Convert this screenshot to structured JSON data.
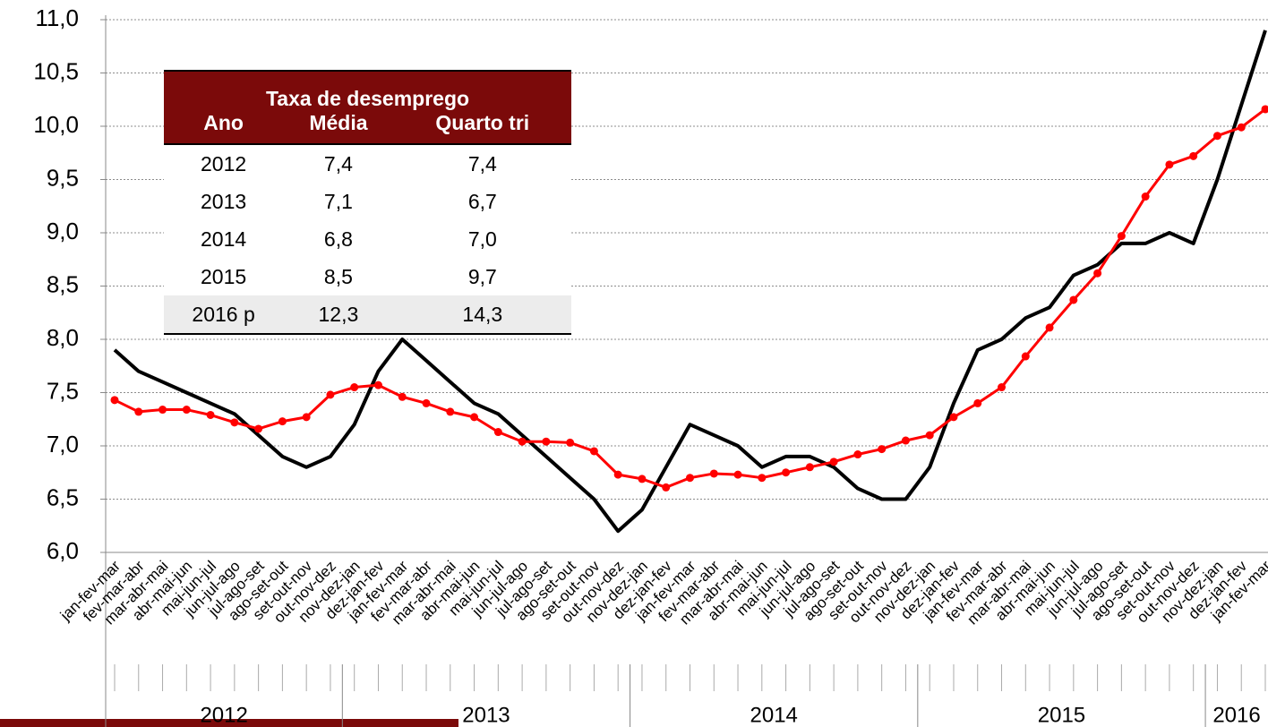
{
  "chart_data": {
    "type": "line",
    "categories": [
      "jan-fev-mar",
      "fev-mar-abr",
      "mar-abr-mai",
      "abr-mai-jun",
      "mai-jun-jul",
      "jun-jul-ago",
      "jul-ago-set",
      "ago-set-out",
      "set-out-nov",
      "out-nov-dez",
      "nov-dez-jan",
      "dez-jan-fev",
      "jan-fev-mar",
      "fev-mar-abr",
      "mar-abr-mai",
      "abr-mai-jun",
      "mai-jun-jul",
      "jun-jul-ago",
      "jul-ago-set",
      "ago-set-out",
      "set-out-nov",
      "out-nov-dez",
      "nov-dez-jan",
      "dez-jan-fev",
      "jan-fev-mar",
      "fev-mar-abr",
      "mar-abr-mai",
      "abr-mai-jun",
      "mai-jun-jul",
      "jun-jul-ago",
      "jul-ago-set",
      "ago-set-out",
      "set-out-nov",
      "out-nov-dez",
      "nov-dez-jan",
      "dez-jan-fev",
      "jan-fev-mar",
      "fev-mar-abr",
      "mar-abr-mai",
      "abr-mai-jun",
      "mai-jun-jul",
      "jun-jul-ago",
      "jul-ago-set",
      "ago-set-out",
      "set-out-nov",
      "out-nov-dez",
      "nov-dez-jan",
      "dez-jan-fev",
      "jan-fev-mar"
    ],
    "category_years": [
      "2012",
      "2012",
      "2012",
      "2012",
      "2012",
      "2012",
      "2012",
      "2012",
      "2012",
      "2012",
      "2013",
      "2013",
      "2013",
      "2013",
      "2013",
      "2013",
      "2013",
      "2013",
      "2013",
      "2013",
      "2013",
      "2013",
      "2014",
      "2014",
      "2014",
      "2014",
      "2014",
      "2014",
      "2014",
      "2014",
      "2014",
      "2014",
      "2014",
      "2014",
      "2015",
      "2015",
      "2015",
      "2015",
      "2015",
      "2015",
      "2015",
      "2015",
      "2015",
      "2015",
      "2015",
      "2015",
      "2016",
      "2016",
      "2016"
    ],
    "series": [
      {
        "color": "#000000",
        "values": [
          7.9,
          7.7,
          7.6,
          7.5,
          7.4,
          7.3,
          7.1,
          6.9,
          6.8,
          6.9,
          7.2,
          7.7,
          8.0,
          7.8,
          7.6,
          7.4,
          7.3,
          7.1,
          6.9,
          6.7,
          6.5,
          6.2,
          6.4,
          6.8,
          7.2,
          7.1,
          7.0,
          6.8,
          6.9,
          6.9,
          6.8,
          6.6,
          6.5,
          6.5,
          6.8,
          7.4,
          7.9,
          8.0,
          8.2,
          8.3,
          8.6,
          8.7,
          8.9,
          8.9,
          9.0,
          8.9,
          9.5,
          10.2,
          10.9
        ]
      },
      {
        "color": "#ff0000",
        "values": [
          7.43,
          7.32,
          7.34,
          7.34,
          7.29,
          7.22,
          7.16,
          7.23,
          7.27,
          7.48,
          7.55,
          7.57,
          7.46,
          7.4,
          7.32,
          7.27,
          7.13,
          7.04,
          7.04,
          7.03,
          6.95,
          6.73,
          6.69,
          6.61,
          6.7,
          6.74,
          6.73,
          6.7,
          6.75,
          6.8,
          6.85,
          6.92,
          6.97,
          7.05,
          7.1,
          7.27,
          7.4,
          7.55,
          7.84,
          8.11,
          8.37,
          8.62,
          8.97,
          9.34,
          9.64,
          9.72,
          9.91,
          9.99,
          10.16
        ]
      }
    ],
    "ylim": [
      6,
      11
    ],
    "yticks": [
      {
        "value": 6,
        "label": "6,0"
      },
      {
        "value": 6.5,
        "label": "6,5"
      },
      {
        "value": 7,
        "label": "7,0"
      },
      {
        "value": 7.5,
        "label": "7,5"
      },
      {
        "value": 8,
        "label": "8,0"
      },
      {
        "value": 8.5,
        "label": "8,5"
      },
      {
        "value": 9,
        "label": "9,0"
      },
      {
        "value": 9.5,
        "label": "9,5"
      },
      {
        "value": 10,
        "label": "10,0"
      },
      {
        "value": 10.5,
        "label": "10,5"
      },
      {
        "value": 11,
        "label": "11,0"
      }
    ],
    "grid": true
  },
  "table": {
    "title": "Taxa de desemprego",
    "columns": [
      "Ano",
      "Média",
      "Quarto tri"
    ],
    "rows": [
      [
        "2012",
        "7,4",
        "7,4"
      ],
      [
        "2013",
        "7,1",
        "6,7"
      ],
      [
        "2014",
        "6,8",
        "7,0"
      ],
      [
        "2015",
        "8,5",
        "9,7"
      ],
      [
        "2016 p",
        "12,3",
        "14,3"
      ]
    ]
  }
}
